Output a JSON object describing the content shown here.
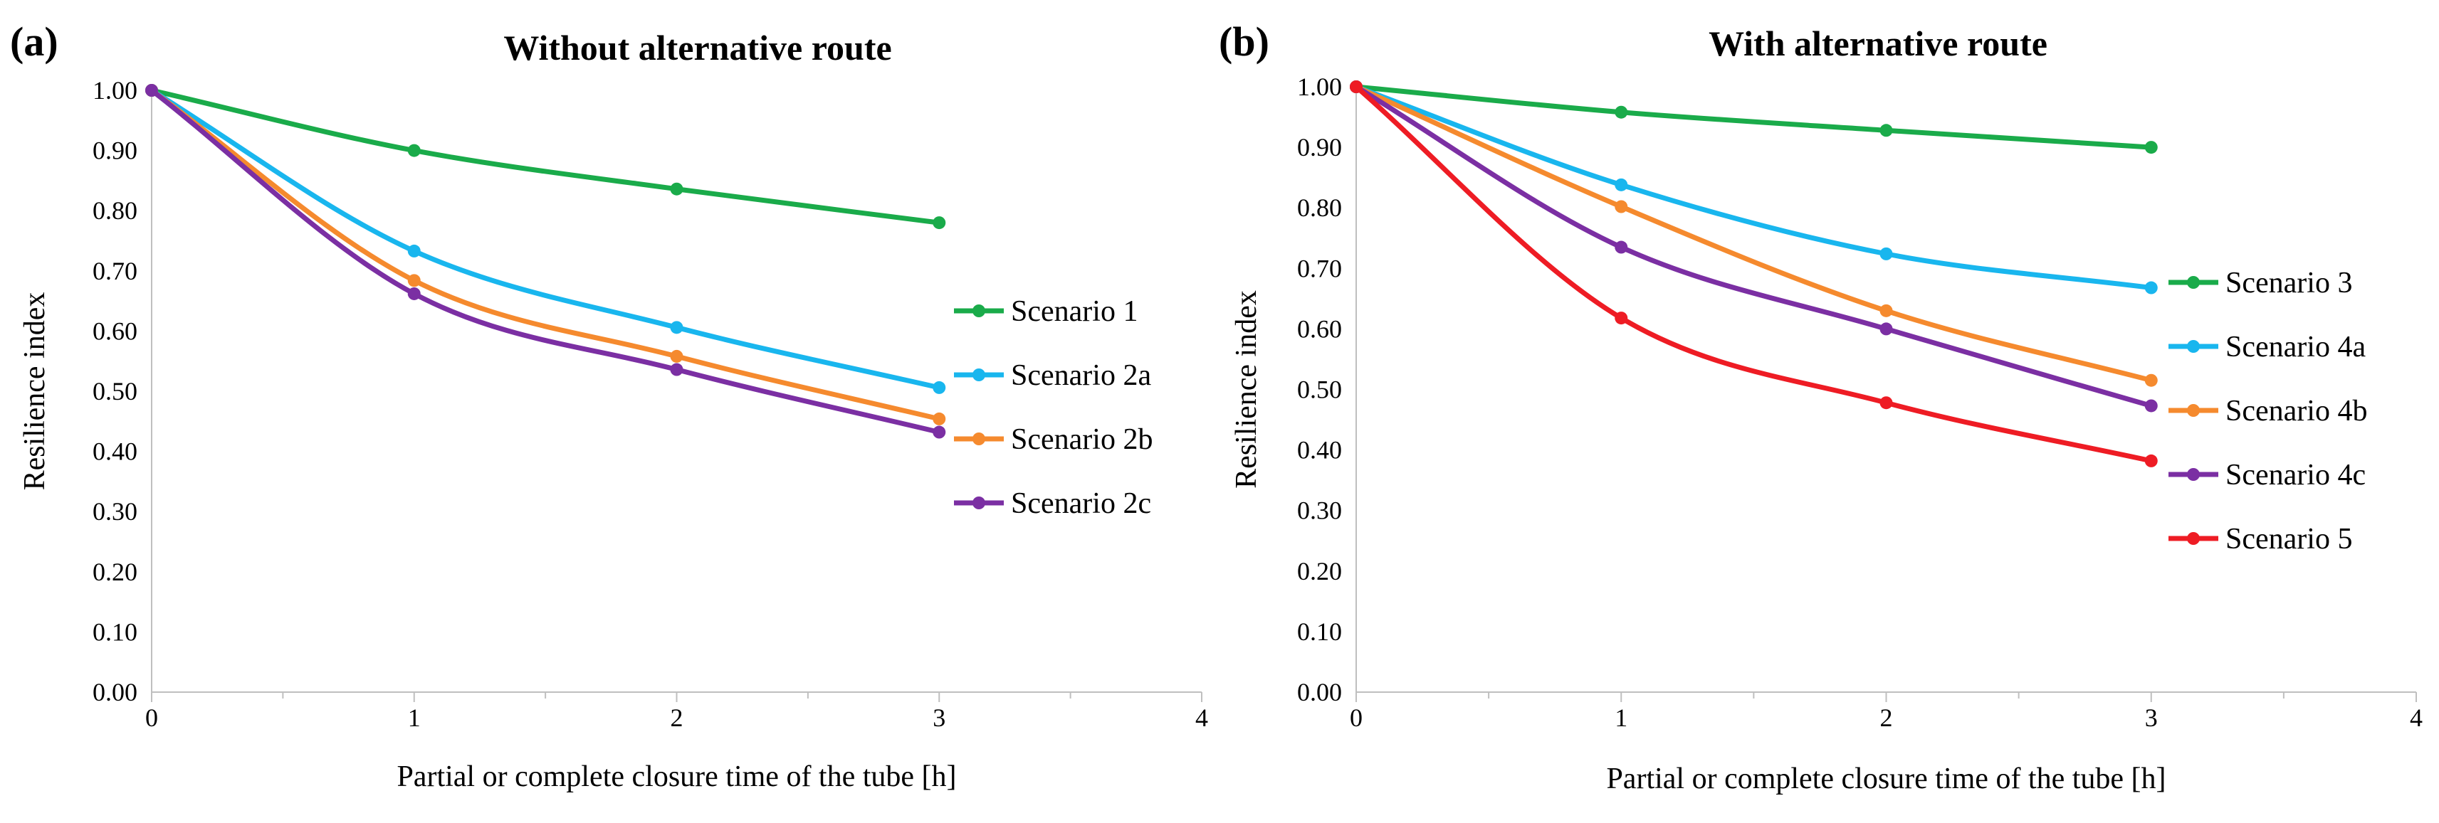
{
  "figure": {
    "panels": [
      "(a)",
      "(b)"
    ]
  },
  "chart_data": [
    {
      "type": "line",
      "panel_label": "(a)",
      "title": "Without alternative route",
      "xlabel": "Partial or complete closure time of the tube [h]",
      "ylabel": "Resilience index",
      "xlim": [
        0,
        4
      ],
      "ylim": [
        0,
        1
      ],
      "x_ticks": [
        "0",
        "1",
        "2",
        "3",
        "4"
      ],
      "y_ticks": [
        "0.00",
        "0.10",
        "0.20",
        "0.30",
        "0.40",
        "0.50",
        "0.60",
        "0.70",
        "0.80",
        "0.90",
        "1.00"
      ],
      "grid": false,
      "legend_position": "right",
      "x": [
        0,
        1,
        2,
        3
      ],
      "series": [
        {
          "name": "Scenario 1",
          "color": "#1aab4a",
          "values": [
            1.0,
            0.9,
            0.836,
            0.78
          ]
        },
        {
          "name": "Scenario 2a",
          "color": "#19b6ee",
          "values": [
            1.0,
            0.733,
            0.606,
            0.506
          ]
        },
        {
          "name": "Scenario 2b",
          "color": "#f58a2e",
          "values": [
            1.0,
            0.684,
            0.558,
            0.454
          ]
        },
        {
          "name": "Scenario 2c",
          "color": "#7b2fa3",
          "values": [
            1.0,
            0.662,
            0.536,
            0.432
          ]
        }
      ]
    },
    {
      "type": "line",
      "panel_label": "(b)",
      "title": "With alternative route",
      "xlabel": "Partial or complete closure time of the tube [h]",
      "ylabel": "Resilience index",
      "xlim": [
        0,
        4
      ],
      "ylim": [
        0,
        1
      ],
      "x_ticks": [
        "0",
        "1",
        "2",
        "3",
        "4"
      ],
      "y_ticks": [
        "0.00",
        "0.10",
        "0.20",
        "0.30",
        "0.40",
        "0.50",
        "0.60",
        "0.70",
        "0.80",
        "0.90",
        "1.00"
      ],
      "grid": false,
      "legend_position": "right",
      "x": [
        0,
        1,
        2,
        3
      ],
      "series": [
        {
          "name": "Scenario 3",
          "color": "#1aab4a",
          "values": [
            1.0,
            0.958,
            0.928,
            0.9
          ]
        },
        {
          "name": "Scenario 4a",
          "color": "#19b6ee",
          "values": [
            1.0,
            0.838,
            0.724,
            0.668
          ]
        },
        {
          "name": "Scenario 4b",
          "color": "#f58a2e",
          "values": [
            1.0,
            0.802,
            0.63,
            0.515
          ]
        },
        {
          "name": "Scenario 4c",
          "color": "#7b2fa3",
          "values": [
            1.0,
            0.735,
            0.6,
            0.473
          ]
        },
        {
          "name": "Scenario 5",
          "color": "#ee1c24",
          "values": [
            1.0,
            0.618,
            0.478,
            0.382
          ]
        }
      ]
    }
  ]
}
